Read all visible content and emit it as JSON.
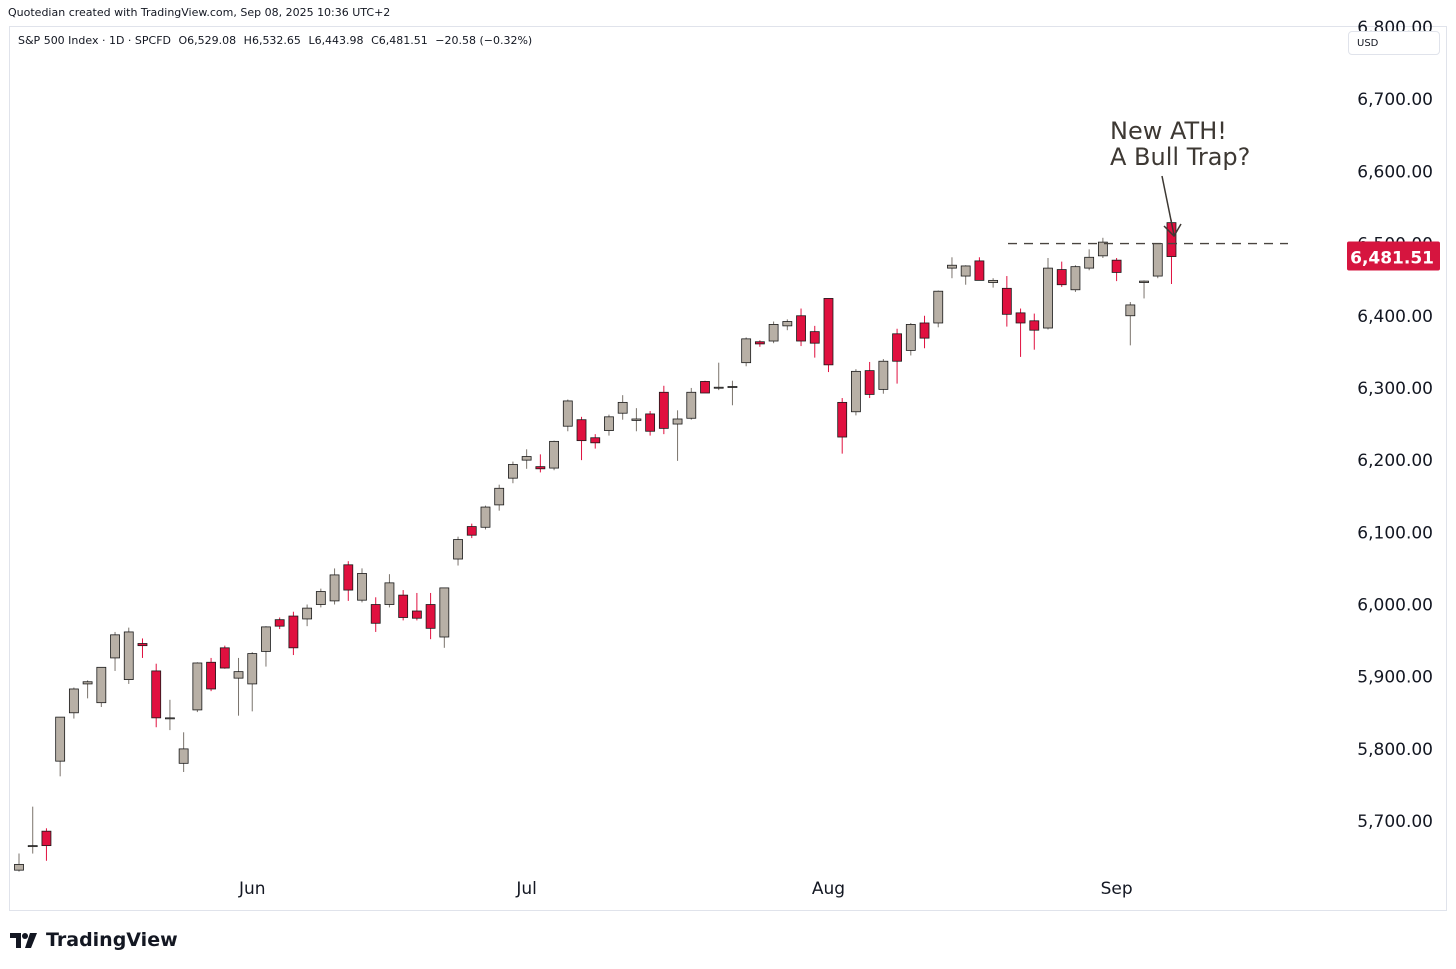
{
  "header": {
    "credit": "Quotedian created with TradingView.com, Sep 08, 2025 10:36 UTC+2"
  },
  "legend": {
    "symbol": "S&P 500 Index · 1D · SPCFD",
    "open": "O6,529.08",
    "high": "H6,532.65",
    "low": "L6,443.98",
    "close": "C6,481.51",
    "change": "−20.58 (−0.32%)"
  },
  "currency": "USD",
  "footer": {
    "brand": "TradingView"
  },
  "colors": {
    "up": "#b8b0a6",
    "down": "#e0103f",
    "wick": "#7a736c",
    "price_label_bg": "#d6153f"
  },
  "chart_data": {
    "type": "candlestick",
    "ylim": [
      5635,
      6800
    ],
    "yticks": [
      5700,
      5800,
      5900,
      6000,
      6100,
      6200,
      6300,
      6400,
      6500,
      6600,
      6700
    ],
    "ytick_labels": [
      "5,700.00",
      "5,800.00",
      "5,900.00",
      "6,000.00",
      "6,100.00",
      "6,200.00",
      "6,300.00",
      "6,400.00",
      "6,500.00",
      "6,600.00",
      "6,700.00"
    ],
    "top_partial_tick_label": "6,800.00",
    "x_month_labels": [
      {
        "label": "Jun",
        "index": 17
      },
      {
        "label": "Jul",
        "index": 37
      },
      {
        "label": "Aug",
        "index": 59
      },
      {
        "label": "Sep",
        "index": 80
      }
    ],
    "last_price_label": "6,481.51",
    "resistance_level": 6500,
    "annotation": {
      "lines": [
        "New ATH!",
        "A Bull Trap?"
      ]
    },
    "candles": [
      {
        "o": 5632,
        "h": 5655,
        "l": 5630,
        "c": 5640
      },
      {
        "o": 5665,
        "h": 5720,
        "l": 5655,
        "c": 5666
      },
      {
        "o": 5686,
        "h": 5690,
        "l": 5645,
        "c": 5666
      },
      {
        "o": 5783,
        "h": 5842,
        "l": 5762,
        "c": 5844
      },
      {
        "o": 5850,
        "h": 5885,
        "l": 5842,
        "c": 5883
      },
      {
        "o": 5890,
        "h": 5895,
        "l": 5870,
        "c": 5893
      },
      {
        "o": 5864,
        "h": 5912,
        "l": 5858,
        "c": 5913
      },
      {
        "o": 5926,
        "h": 5962,
        "l": 5908,
        "c": 5958
      },
      {
        "o": 5896,
        "h": 5968,
        "l": 5890,
        "c": 5962
      },
      {
        "o": 5946,
        "h": 5953,
        "l": 5926,
        "c": 5943
      },
      {
        "o": 5908,
        "h": 5918,
        "l": 5830,
        "c": 5843
      },
      {
        "o": 5843,
        "h": 5868,
        "l": 5826,
        "c": 5843
      },
      {
        "o": 5780,
        "h": 5823,
        "l": 5768,
        "c": 5800
      },
      {
        "o": 5854,
        "h": 5920,
        "l": 5851,
        "c": 5919
      },
      {
        "o": 5920,
        "h": 5926,
        "l": 5880,
        "c": 5883
      },
      {
        "o": 5940,
        "h": 5943,
        "l": 5911,
        "c": 5912
      },
      {
        "o": 5898,
        "h": 5926,
        "l": 5846,
        "c": 5907
      },
      {
        "o": 5890,
        "h": 5934,
        "l": 5852,
        "c": 5932
      },
      {
        "o": 5935,
        "h": 5970,
        "l": 5914,
        "c": 5969
      },
      {
        "o": 5979,
        "h": 5982,
        "l": 5966,
        "c": 5970
      },
      {
        "o": 5984,
        "h": 5990,
        "l": 5930,
        "c": 5940
      },
      {
        "o": 5980,
        "h": 6000,
        "l": 5970,
        "c": 5995
      },
      {
        "o": 6000,
        "h": 6022,
        "l": 5996,
        "c": 6018
      },
      {
        "o": 6005,
        "h": 6050,
        "l": 6000,
        "c": 6041
      },
      {
        "o": 6055,
        "h": 6060,
        "l": 6005,
        "c": 6020
      },
      {
        "o": 6006,
        "h": 6050,
        "l": 6003,
        "c": 6043
      },
      {
        "o": 6000,
        "h": 6010,
        "l": 5962,
        "c": 5974
      },
      {
        "o": 6000,
        "h": 6042,
        "l": 5996,
        "c": 6030
      },
      {
        "o": 6013,
        "h": 6020,
        "l": 5978,
        "c": 5982
      },
      {
        "o": 5991,
        "h": 6016,
        "l": 5978,
        "c": 5981
      },
      {
        "o": 6000,
        "h": 6016,
        "l": 5952,
        "c": 5967
      },
      {
        "o": 5955,
        "h": 6022,
        "l": 5940,
        "c": 6023
      },
      {
        "o": 6063,
        "h": 6094,
        "l": 6054,
        "c": 6090
      },
      {
        "o": 6108,
        "h": 6112,
        "l": 6092,
        "c": 6096
      },
      {
        "o": 6107,
        "h": 6137,
        "l": 6104,
        "c": 6135
      },
      {
        "o": 6138,
        "h": 6166,
        "l": 6130,
        "c": 6161
      },
      {
        "o": 6175,
        "h": 6198,
        "l": 6168,
        "c": 6194
      },
      {
        "o": 6200,
        "h": 6215,
        "l": 6188,
        "c": 6205
      },
      {
        "o": 6191,
        "h": 6208,
        "l": 6183,
        "c": 6188
      },
      {
        "o": 6189,
        "h": 6227,
        "l": 6186,
        "c": 6226
      },
      {
        "o": 6247,
        "h": 6284,
        "l": 6240,
        "c": 6282
      },
      {
        "o": 6256,
        "h": 6260,
        "l": 6200,
        "c": 6227
      },
      {
        "o": 6231,
        "h": 6236,
        "l": 6216,
        "c": 6224
      },
      {
        "o": 6241,
        "h": 6263,
        "l": 6234,
        "c": 6260
      },
      {
        "o": 6265,
        "h": 6290,
        "l": 6256,
        "c": 6280
      },
      {
        "o": 6255,
        "h": 6272,
        "l": 6240,
        "c": 6257
      },
      {
        "o": 6264,
        "h": 6268,
        "l": 6234,
        "c": 6240
      },
      {
        "o": 6294,
        "h": 6303,
        "l": 6236,
        "c": 6244
      },
      {
        "o": 6250,
        "h": 6269,
        "l": 6199,
        "c": 6257
      },
      {
        "o": 6258,
        "h": 6300,
        "l": 6256,
        "c": 6294
      },
      {
        "o": 6309,
        "h": 6310,
        "l": 6293,
        "c": 6293
      },
      {
        "o": 6301,
        "h": 6335,
        "l": 6297,
        "c": 6301
      },
      {
        "o": 6302,
        "h": 6310,
        "l": 6276,
        "c": 6302
      },
      {
        "o": 6335,
        "h": 6370,
        "l": 6330,
        "c": 6368
      },
      {
        "o": 6364,
        "h": 6366,
        "l": 6357,
        "c": 6361
      },
      {
        "o": 6365,
        "h": 6392,
        "l": 6362,
        "c": 6388
      },
      {
        "o": 6386,
        "h": 6395,
        "l": 6380,
        "c": 6392
      },
      {
        "o": 6400,
        "h": 6410,
        "l": 6358,
        "c": 6365
      },
      {
        "o": 6378,
        "h": 6386,
        "l": 6342,
        "c": 6362
      },
      {
        "o": 6424,
        "h": 6424,
        "l": 6322,
        "c": 6332
      },
      {
        "o": 6280,
        "h": 6286,
        "l": 6209,
        "c": 6232
      },
      {
        "o": 6267,
        "h": 6326,
        "l": 6262,
        "c": 6323
      },
      {
        "o": 6324,
        "h": 6336,
        "l": 6286,
        "c": 6291
      },
      {
        "o": 6298,
        "h": 6340,
        "l": 6292,
        "c": 6337
      },
      {
        "o": 6375,
        "h": 6382,
        "l": 6306,
        "c": 6337
      },
      {
        "o": 6352,
        "h": 6390,
        "l": 6345,
        "c": 6388
      },
      {
        "o": 6390,
        "h": 6400,
        "l": 6355,
        "c": 6369
      },
      {
        "o": 6390,
        "h": 6435,
        "l": 6384,
        "c": 6434
      },
      {
        "o": 6466,
        "h": 6481,
        "l": 6452,
        "c": 6470
      },
      {
        "o": 6455,
        "h": 6470,
        "l": 6443,
        "c": 6469
      },
      {
        "o": 6476,
        "h": 6481,
        "l": 6449,
        "c": 6449
      },
      {
        "o": 6446,
        "h": 6452,
        "l": 6439,
        "c": 6449
      },
      {
        "o": 6438,
        "h": 6455,
        "l": 6385,
        "c": 6402
      },
      {
        "o": 6404,
        "h": 6410,
        "l": 6343,
        "c": 6390
      },
      {
        "o": 6393,
        "h": 6403,
        "l": 6353,
        "c": 6380
      },
      {
        "o": 6383,
        "h": 6480,
        "l": 6381,
        "c": 6466
      },
      {
        "o": 6464,
        "h": 6475,
        "l": 6440,
        "c": 6443
      },
      {
        "o": 6436,
        "h": 6470,
        "l": 6433,
        "c": 6468
      },
      {
        "o": 6466,
        "h": 6492,
        "l": 6463,
        "c": 6481
      },
      {
        "o": 6483,
        "h": 6508,
        "l": 6480,
        "c": 6502
      },
      {
        "o": 6477,
        "h": 6480,
        "l": 6448,
        "c": 6460
      },
      {
        "o": 6400,
        "h": 6419,
        "l": 6359,
        "c": 6415
      },
      {
        "o": 6446,
        "h": 6449,
        "l": 6424,
        "c": 6448
      },
      {
        "o": 6455,
        "h": 6500,
        "l": 6452,
        "c": 6500
      },
      {
        "o": 6529,
        "h": 6533,
        "l": 6444,
        "c": 6482
      }
    ]
  }
}
